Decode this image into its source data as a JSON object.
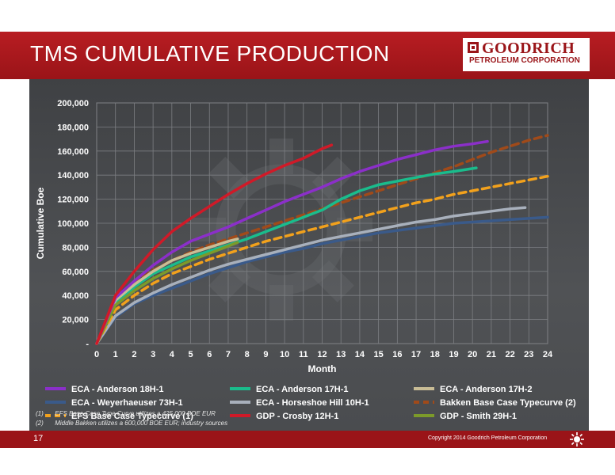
{
  "header": {
    "title": "TMS CUMULATIVE PRODUCTION",
    "logo_line1": "GOODRICH",
    "logo_line2": "PETROLEUM CORPORATION"
  },
  "footnotes": [
    {
      "num": "(1)",
      "text": "EFS Base Case Type Curve utilizes a 425,000 BOE EUR"
    },
    {
      "num": "(2)",
      "text": "Middle Bakken utilizes a 600,000 BOE EUR; industry sources"
    }
  ],
  "footer": {
    "page_number": "17",
    "copyright": "Copyright 2014 Goodrich Petroleum Corporation"
  },
  "colors": {
    "brand_red": "#9a1418",
    "panel_dark": "#45474a"
  },
  "chart_data": {
    "type": "line",
    "xlabel": "Month",
    "ylabel": "Cumulative Boe",
    "xlim": [
      0,
      24
    ],
    "ylim": [
      0,
      200000
    ],
    "x_ticks": [
      "0",
      "1",
      "2",
      "3",
      "4",
      "5",
      "6",
      "7",
      "8",
      "9",
      "10",
      "11",
      "12",
      "13",
      "14",
      "15",
      "16",
      "17",
      "18",
      "19",
      "20",
      "21",
      "22",
      "23",
      "24"
    ],
    "y_ticks": [
      "-",
      "20,000",
      "40,000",
      "60,000",
      "80,000",
      "100,000",
      "120,000",
      "140,000",
      "160,000",
      "180,000",
      "200,000"
    ],
    "grid": true,
    "legend_position": "bottom",
    "series": [
      {
        "name": "ECA - Anderson 18H-1",
        "color": "#8b2fc9",
        "dashed": false,
        "x": [
          0,
          1,
          2,
          3,
          4,
          5,
          6,
          7,
          8,
          9,
          10,
          11,
          12,
          13,
          14,
          15,
          16,
          17,
          18,
          19,
          20,
          20.8
        ],
        "y": [
          0,
          38000,
          52000,
          65000,
          76000,
          85000,
          91000,
          97000,
          104000,
          111000,
          118000,
          124000,
          130000,
          137000,
          143000,
          148000,
          153000,
          157000,
          161000,
          164000,
          166000,
          168000
        ]
      },
      {
        "name": "ECA - Anderson 17H-1",
        "color": "#1abc8c",
        "dashed": false,
        "x": [
          0,
          1,
          2,
          3,
          4,
          5,
          6,
          7,
          8,
          9,
          10,
          11,
          12,
          13,
          14,
          15,
          16,
          17,
          18,
          19,
          20.2
        ],
        "y": [
          0,
          34000,
          47000,
          58000,
          65000,
          72000,
          77000,
          82000,
          87000,
          93000,
          99000,
          105000,
          111000,
          120000,
          127000,
          132000,
          135000,
          138000,
          141000,
          143000,
          146000
        ]
      },
      {
        "name": "ECA - Anderson 17H-2",
        "color": "#c9bd96",
        "dashed": false,
        "x": [
          0,
          1,
          2,
          3,
          4,
          5,
          6,
          7,
          7.5
        ],
        "y": [
          0,
          36000,
          49000,
          60000,
          69000,
          75000,
          80000,
          85000,
          87000
        ]
      },
      {
        "name": "ECA - Weyerhaeuser 73H-1",
        "color": "#3a5a8a",
        "dashed": false,
        "x": [
          0,
          1,
          2,
          3,
          4,
          5,
          6,
          7,
          8,
          9,
          10,
          11,
          12,
          13,
          14,
          15,
          16,
          17,
          18,
          19,
          20,
          21,
          22,
          23,
          24
        ],
        "y": [
          0,
          22000,
          33000,
          40000,
          46000,
          52000,
          58000,
          63000,
          68000,
          72000,
          76000,
          79000,
          83000,
          86000,
          89000,
          92000,
          94000,
          96000,
          98000,
          100000,
          101000,
          102000,
          103000,
          104000,
          105000
        ]
      },
      {
        "name": "ECA - Horseshoe Hill 10H-1",
        "color": "#a8b0bc",
        "dashed": false,
        "x": [
          0,
          1,
          2,
          3,
          4,
          5,
          6,
          7,
          8,
          9,
          10,
          11,
          12,
          13,
          14,
          15,
          16,
          17,
          18,
          19,
          20,
          21,
          22,
          22.8
        ],
        "y": [
          0,
          23000,
          34000,
          42000,
          49000,
          55000,
          61000,
          66000,
          70000,
          74000,
          78000,
          82000,
          86000,
          89000,
          92000,
          95000,
          98000,
          101000,
          103000,
          106000,
          108000,
          110000,
          112000,
          113000
        ]
      },
      {
        "name": "Bakken Base Case Typecurve (2)",
        "color": "#a04a1a",
        "dashed": true,
        "x": [
          0,
          1,
          2,
          3,
          4,
          5,
          6,
          7,
          8,
          9,
          10,
          11,
          12,
          13,
          14,
          15,
          16,
          17,
          18,
          19,
          20,
          21,
          22,
          23,
          24
        ],
        "y": [
          0,
          36000,
          50000,
          61000,
          69000,
          76000,
          82000,
          87000,
          92000,
          97000,
          102000,
          107000,
          112000,
          117000,
          122000,
          127000,
          132000,
          137000,
          142000,
          147000,
          153000,
          159000,
          164000,
          169000,
          173000
        ]
      },
      {
        "name": "EFS Base Case Typecurve (1)",
        "color": "#f2a11c",
        "dashed": true,
        "x": [
          0,
          1,
          2,
          3,
          4,
          5,
          6,
          7,
          8,
          9,
          10,
          11,
          12,
          13,
          14,
          15,
          16,
          17,
          18,
          19,
          20,
          21,
          22,
          23,
          24
        ],
        "y": [
          0,
          28000,
          40000,
          50000,
          58000,
          64000,
          70000,
          75000,
          80000,
          85000,
          89000,
          93000,
          97000,
          101000,
          105000,
          109000,
          113000,
          117000,
          120000,
          124000,
          127000,
          130000,
          133000,
          136000,
          139000
        ]
      },
      {
        "name": "GDP - Crosby 12H-1",
        "color": "#d01a28",
        "dashed": false,
        "x": [
          0,
          1,
          2,
          3,
          4,
          5,
          6,
          7,
          8,
          9,
          10,
          11,
          12,
          12.5
        ],
        "y": [
          0,
          40000,
          60000,
          78000,
          93000,
          104000,
          114000,
          124000,
          133000,
          141000,
          148000,
          154000,
          162000,
          165000
        ]
      },
      {
        "name": "GDP - Smith 29H-1",
        "color": "#7c9a2a",
        "dashed": false,
        "x": [
          0,
          1,
          2,
          3,
          4,
          5,
          6,
          7,
          7.5
        ],
        "y": [
          0,
          32000,
          44000,
          54000,
          62000,
          69000,
          75000,
          81000,
          84000
        ]
      }
    ]
  }
}
